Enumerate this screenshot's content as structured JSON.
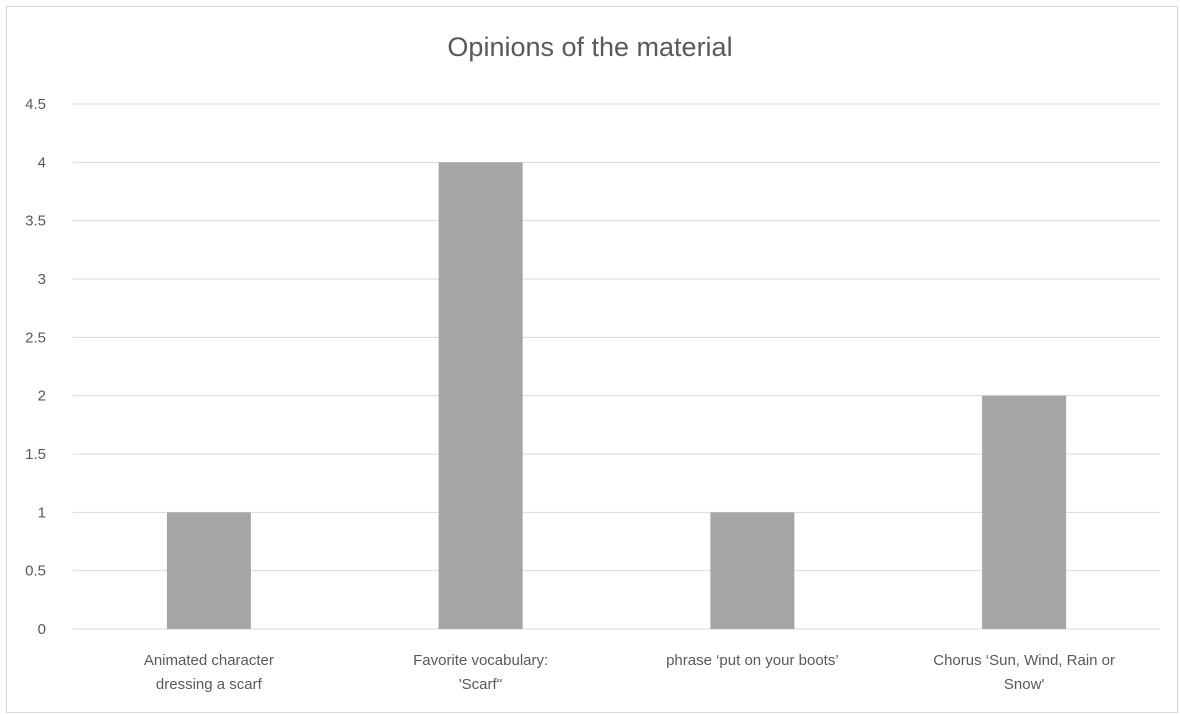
{
  "chart_data": {
    "type": "bar",
    "title": "Opinions of the material",
    "categories": [
      [
        "Animated character",
        "dressing a scarf"
      ],
      [
        "Favorite vocabulary:",
        "'Scarf''"
      ],
      [
        "phrase ‘put on your boots’"
      ],
      [
        "Chorus ‘Sun, Wind, Rain or",
        "Snow'"
      ]
    ],
    "values": [
      1,
      4,
      1,
      2
    ],
    "ylim": [
      0,
      4.5
    ],
    "yticks": [
      "0",
      "0.5",
      "1",
      "1.5",
      "2",
      "2.5",
      "3",
      "3.5",
      "4",
      "4.5"
    ],
    "grid": true,
    "legend": "none",
    "colors": {
      "bar": "#a5a5a5",
      "grid": "#d9d9d9",
      "text": "#595959"
    }
  }
}
